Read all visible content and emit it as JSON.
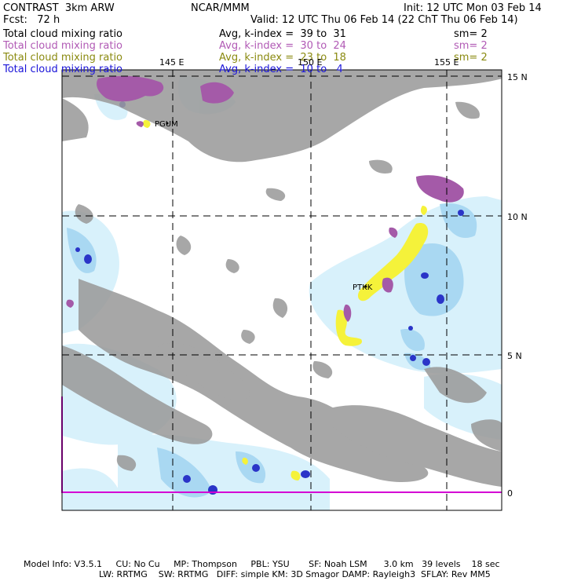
{
  "header": {
    "model": "CONTRAST  3km ARW",
    "org": "NCAR/MMM",
    "init": "Init: 12 UTC Mon 03 Feb 14",
    "fcst": "Fcst:   72 h",
    "valid": "Valid: 12 UTC Thu 06 Feb 14 (22 ChT Thu 06 Feb 14)"
  },
  "legend": [
    {
      "field": "Total cloud mixing ratio",
      "avg": "Avg, k-index =  39 to  31",
      "sm": "sm= 2",
      "color": "#000000"
    },
    {
      "field": "Total cloud mixing ratio",
      "avg": "Avg, k-index =  30 to  24",
      "sm": "sm= 2",
      "color": "#b15ab5"
    },
    {
      "field": "Total cloud mixing ratio",
      "avg": "Avg, k-index =  23 to  18",
      "sm": "sm= 2",
      "color": "#8a8a10"
    },
    {
      "field": "Total cloud mixing ratio",
      "avg": "Avg, k-index =  10 to   4",
      "sm": "",
      "color": "#1a14d8"
    }
  ],
  "map": {
    "lon_labels": [
      "145 E",
      "150 E",
      "155 E"
    ],
    "lat_labels": [
      "15 N",
      "10 N",
      "5 N",
      "0"
    ],
    "stations": [
      "PGUM",
      "PTKK"
    ]
  },
  "footer": {
    "line1": "Model Info: V3.5.1     CU: No Cu     MP: Thompson     PBL: YSU       SF: Noah LSM      3.0 km   39 levels    18 sec",
    "line2": "LW: RRTMG    SW: RRTMG   DIFF: simple KM: 3D Smagor DAMP: Rayleigh3  SFLAY: Rev MM5"
  }
}
